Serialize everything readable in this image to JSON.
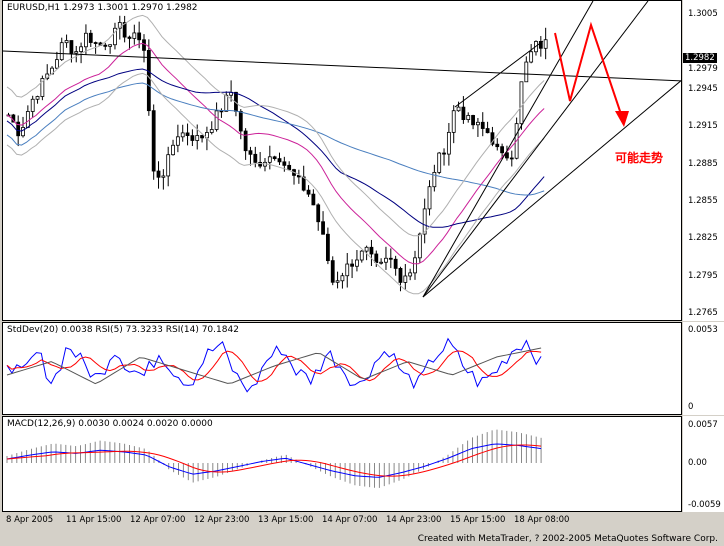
{
  "main": {
    "title": "EURUSD,H1  1.2973 1.3001 1.2970 1.2982",
    "price_tag": "1.2982",
    "price_tag2": "1.2979",
    "yticks": [
      "1.3005",
      "1.2975",
      "1.2945",
      "1.2915",
      "1.2885",
      "1.2855",
      "1.2825",
      "1.2795",
      "1.2765"
    ],
    "annotation": "可能走势",
    "annotation_color": "#ff0000"
  },
  "stddev": {
    "title": "StdDev(20) 0.0038  RSI(5) 73.3233  RSI(14) 70.1842",
    "yticks": [
      "0.0053",
      "0"
    ]
  },
  "macd": {
    "title": "MACD(12,26,9) 0.0030 0.0024 0.0020 0.0000",
    "yticks": [
      "0.0057",
      "0.00",
      "-0.0059"
    ]
  },
  "xaxis": {
    "labels": [
      "8 Apr 2005",
      "11 Apr 15:00",
      "12 Apr 07:00",
      "12 Apr 23:00",
      "13 Apr 15:00",
      "14 Apr 07:00",
      "14 Apr 23:00",
      "15 Apr 15:00",
      "18 Apr 08:00"
    ]
  },
  "footer": {
    "credit": "Created with MetaTrader, ? 2002-2005 MetaQuotes Software Corp."
  },
  "colors": {
    "candle": "#000000",
    "ma_pink": "#cc2299",
    "ma_blue": "#000080",
    "ma_lightblue": "#4a7fbf",
    "band_gray": "#b0b0b0",
    "rsi_blue": "#0000ff",
    "rsi_red": "#ff0000"
  }
}
